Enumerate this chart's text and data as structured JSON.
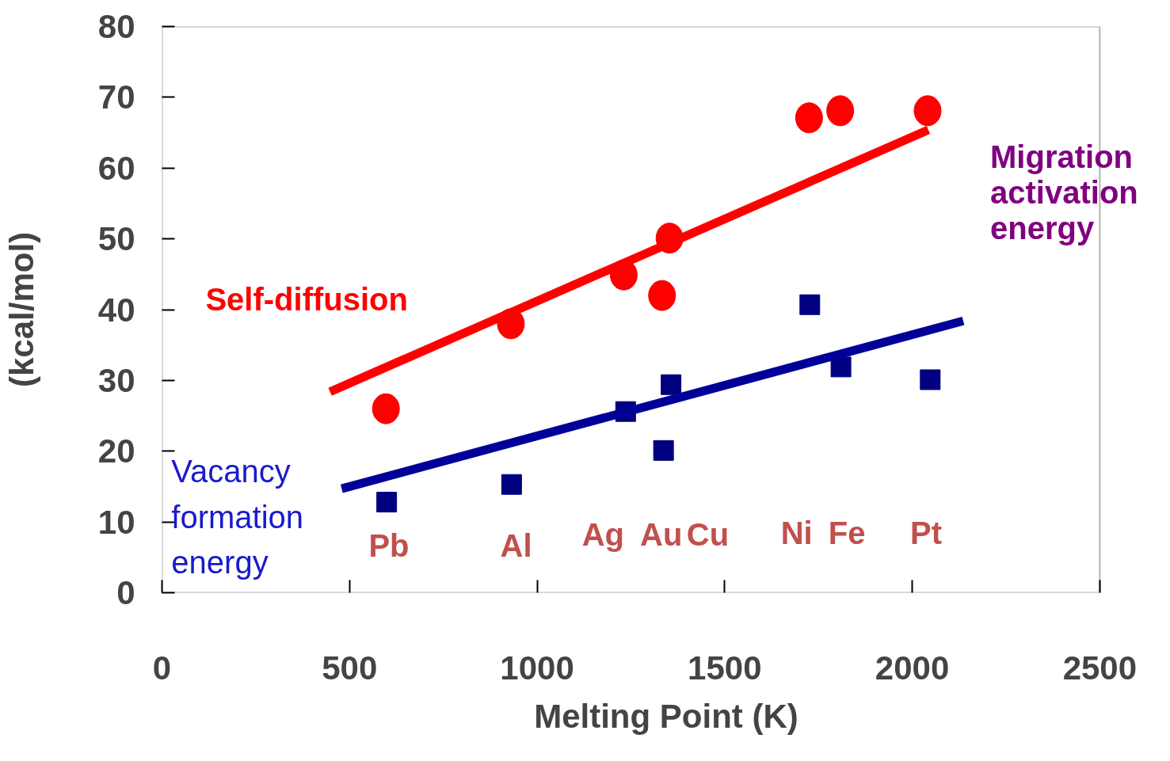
{
  "chart_data": {
    "type": "scatter",
    "xlabel": "Melting Point (K)",
    "ylabel": "(kcal/mol)",
    "xlim": [
      0,
      2500
    ],
    "ylim": [
      0,
      80
    ],
    "xticks": [
      0,
      500,
      1000,
      1500,
      2000,
      2500
    ],
    "yticks": [
      0,
      10,
      20,
      30,
      40,
      50,
      60,
      70,
      80
    ],
    "grid": false,
    "series": [
      {
        "name": "Self-diffusion",
        "color": "#ff0000",
        "marker": "circle",
        "x": [
          597,
          930,
          1231,
          1353,
          1333,
          1725,
          1808,
          2041
        ],
        "values": [
          26,
          38,
          44.9,
          50.1,
          42,
          67.1,
          68.1,
          68.1
        ]
      },
      {
        "type": "line",
        "color": "#ff0000",
        "x": [
          448,
          2043
        ],
        "values": [
          28.4,
          65.4
        ]
      },
      {
        "name": "Vacancy\nformation\nenergy",
        "color": "#000080",
        "marker": "square",
        "x": [
          599,
          932,
          1236,
          1357,
          1337,
          1727,
          1810,
          2048
        ],
        "values": [
          12.8,
          15.3,
          25.6,
          29.4,
          20.1,
          40.7,
          31.9,
          30.1
        ]
      },
      {
        "type": "line",
        "color": "#000099",
        "x": [
          479,
          2136
        ],
        "values": [
          14.7,
          38.4
        ]
      }
    ],
    "annotations": [
      "Pb",
      "Al",
      "Ag",
      "Au",
      "Cu",
      "Ni",
      "Fe",
      "Pt",
      "Migration\nactivation\nenergy"
    ]
  }
}
